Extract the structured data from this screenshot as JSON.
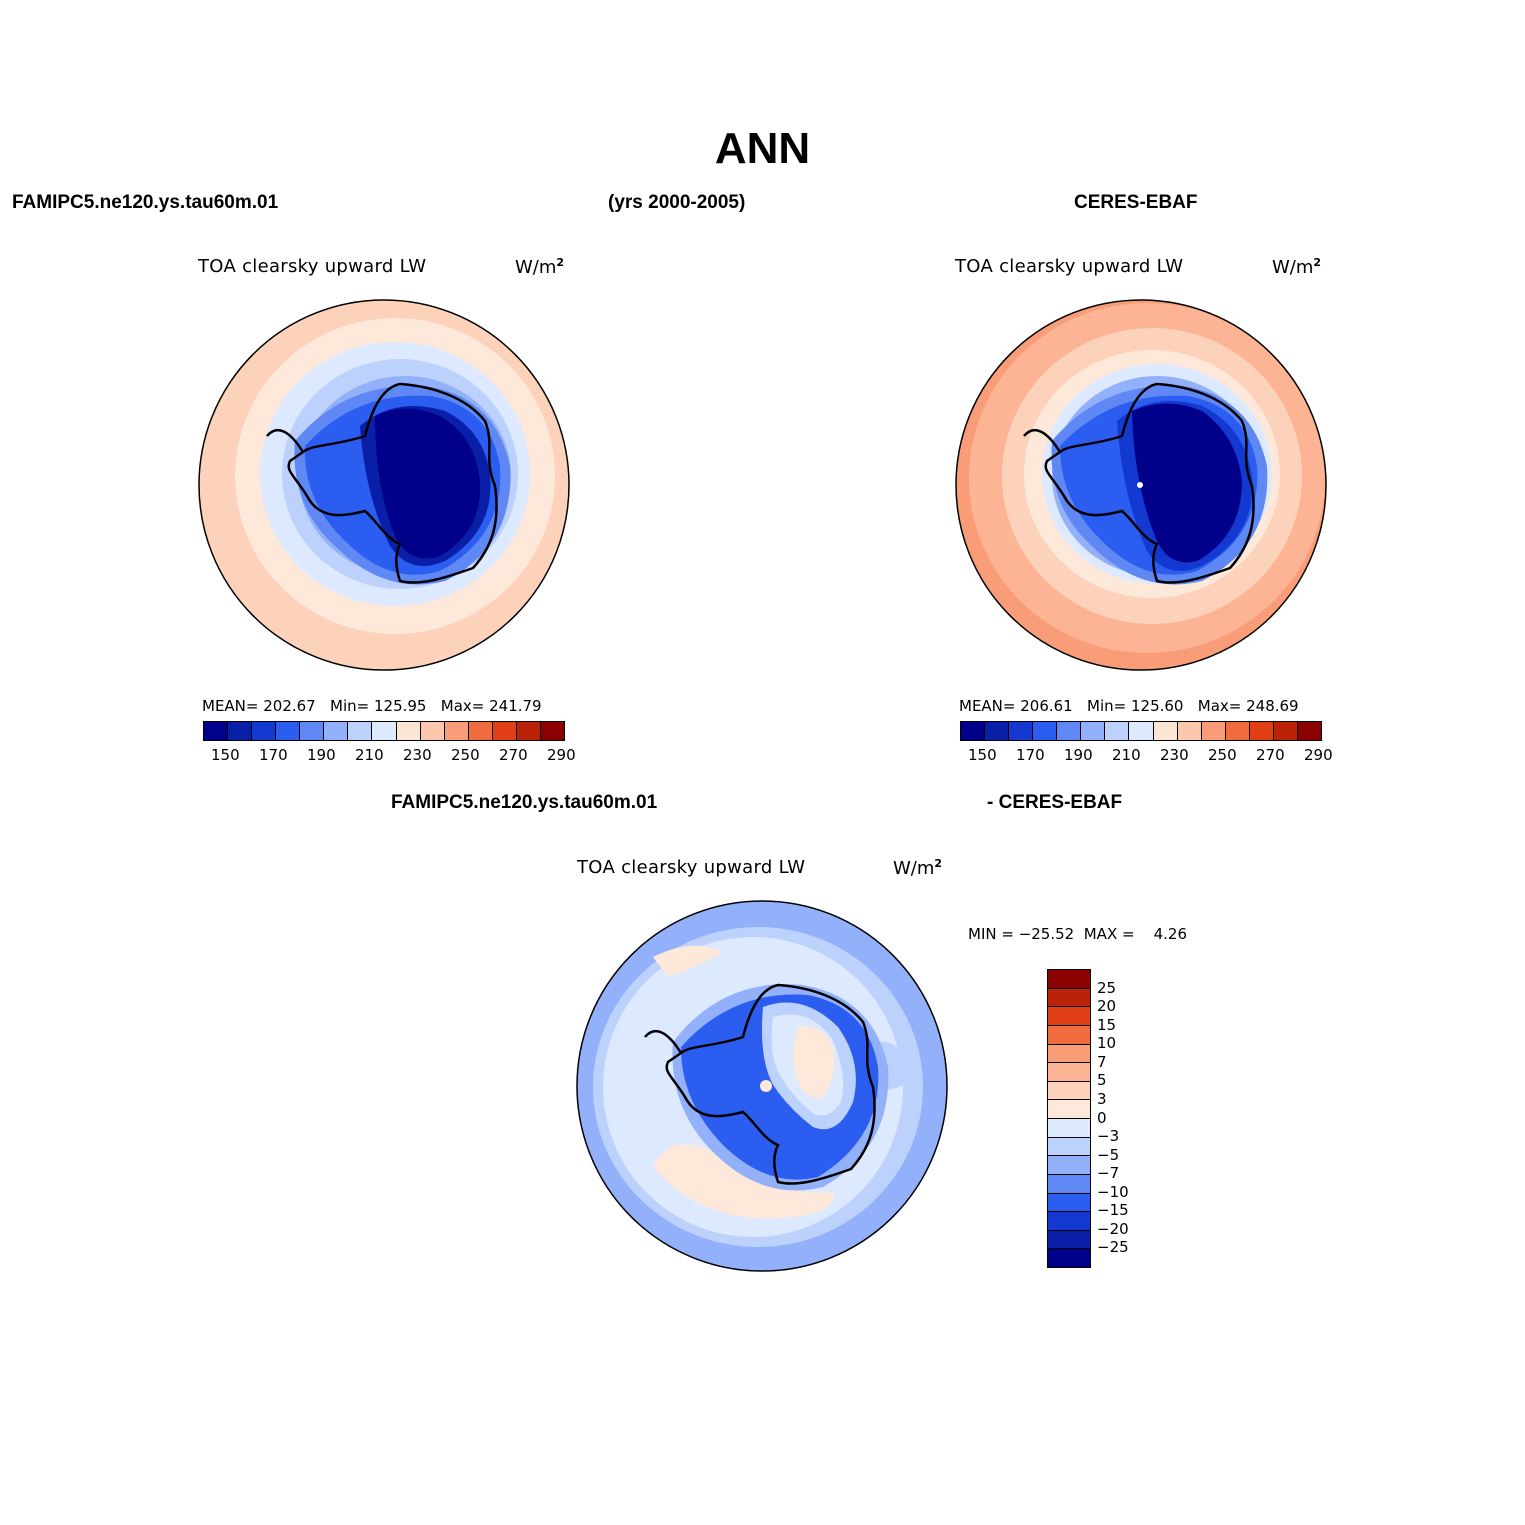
{
  "title": "ANN",
  "header": {
    "left": "FAMIPC5.ne120.ys.tau60m.01",
    "center": "(yrs 2000-2005)",
    "right": "CERES-EBAF"
  },
  "diff_header": {
    "left": "FAMIPC5.ne120.ys.tau60m.01",
    "right": "- CERES-EBAF"
  },
  "panels": [
    {
      "title": "TOA clearsky upward LW",
      "units": "W/m",
      "units_exp": "2",
      "stats": "MEAN= 202.67   Min= 125.95   Max= 241.79"
    },
    {
      "title": "TOA clearsky upward LW",
      "units": "W/m",
      "units_exp": "2",
      "stats": "MEAN= 206.61   Min= 125.60   Max= 248.69"
    },
    {
      "title": "TOA clearsky upward LW",
      "units": "W/m",
      "units_exp": "2",
      "stats": "MIN = −25.52  MAX =    4.26"
    }
  ],
  "colorbar_main": {
    "labels": [
      "150",
      "170",
      "190",
      "210",
      "230",
      "250",
      "270",
      "290"
    ],
    "colors": [
      "#00008b",
      "#0a1fa8",
      "#1439d1",
      "#2b5ef0",
      "#5f88f5",
      "#93b1fa",
      "#bcd1fc",
      "#dde9fe",
      "#fde5d3",
      "#fcc8ad",
      "#f99d78",
      "#f06c3f",
      "#e03f15",
      "#bc2208",
      "#8b0000"
    ]
  },
  "colorbar_diff": {
    "labels": [
      "25",
      "20",
      "15",
      "10",
      "7",
      "5",
      "3",
      "0",
      "−3",
      "−5",
      "−7",
      "−10",
      "−15",
      "−20",
      "−25"
    ],
    "colors": [
      "#8b0000",
      "#bc2208",
      "#e03f15",
      "#f06c3f",
      "#f99d78",
      "#fcb494",
      "#fcd2bb",
      "#fde8da",
      "#dde9fe",
      "#bcd1fc",
      "#93b1fa",
      "#5f88f5",
      "#2b5ef0",
      "#1439d1",
      "#0a1fa8",
      "#00008b"
    ]
  }
}
